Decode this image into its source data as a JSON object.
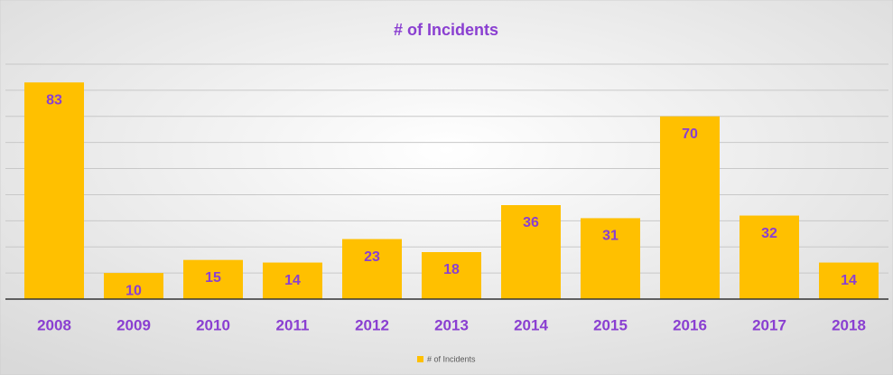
{
  "chart_data": {
    "type": "bar",
    "title": "# of Incidents",
    "categories": [
      "2008",
      "2009",
      "2010",
      "2011",
      "2012",
      "2013",
      "2014",
      "2015",
      "2016",
      "2017",
      "2018"
    ],
    "series": [
      {
        "name": "# of Incidents",
        "color": "#ffc000",
        "values": [
          83,
          10,
          15,
          14,
          23,
          18,
          36,
          31,
          70,
          32,
          14
        ]
      }
    ],
    "ylim": [
      0,
      90
    ],
    "yticks": [
      0,
      10,
      20,
      30,
      40,
      50,
      60,
      70,
      80,
      90
    ],
    "grid": true,
    "data_labels": true,
    "legend": "bottom"
  }
}
